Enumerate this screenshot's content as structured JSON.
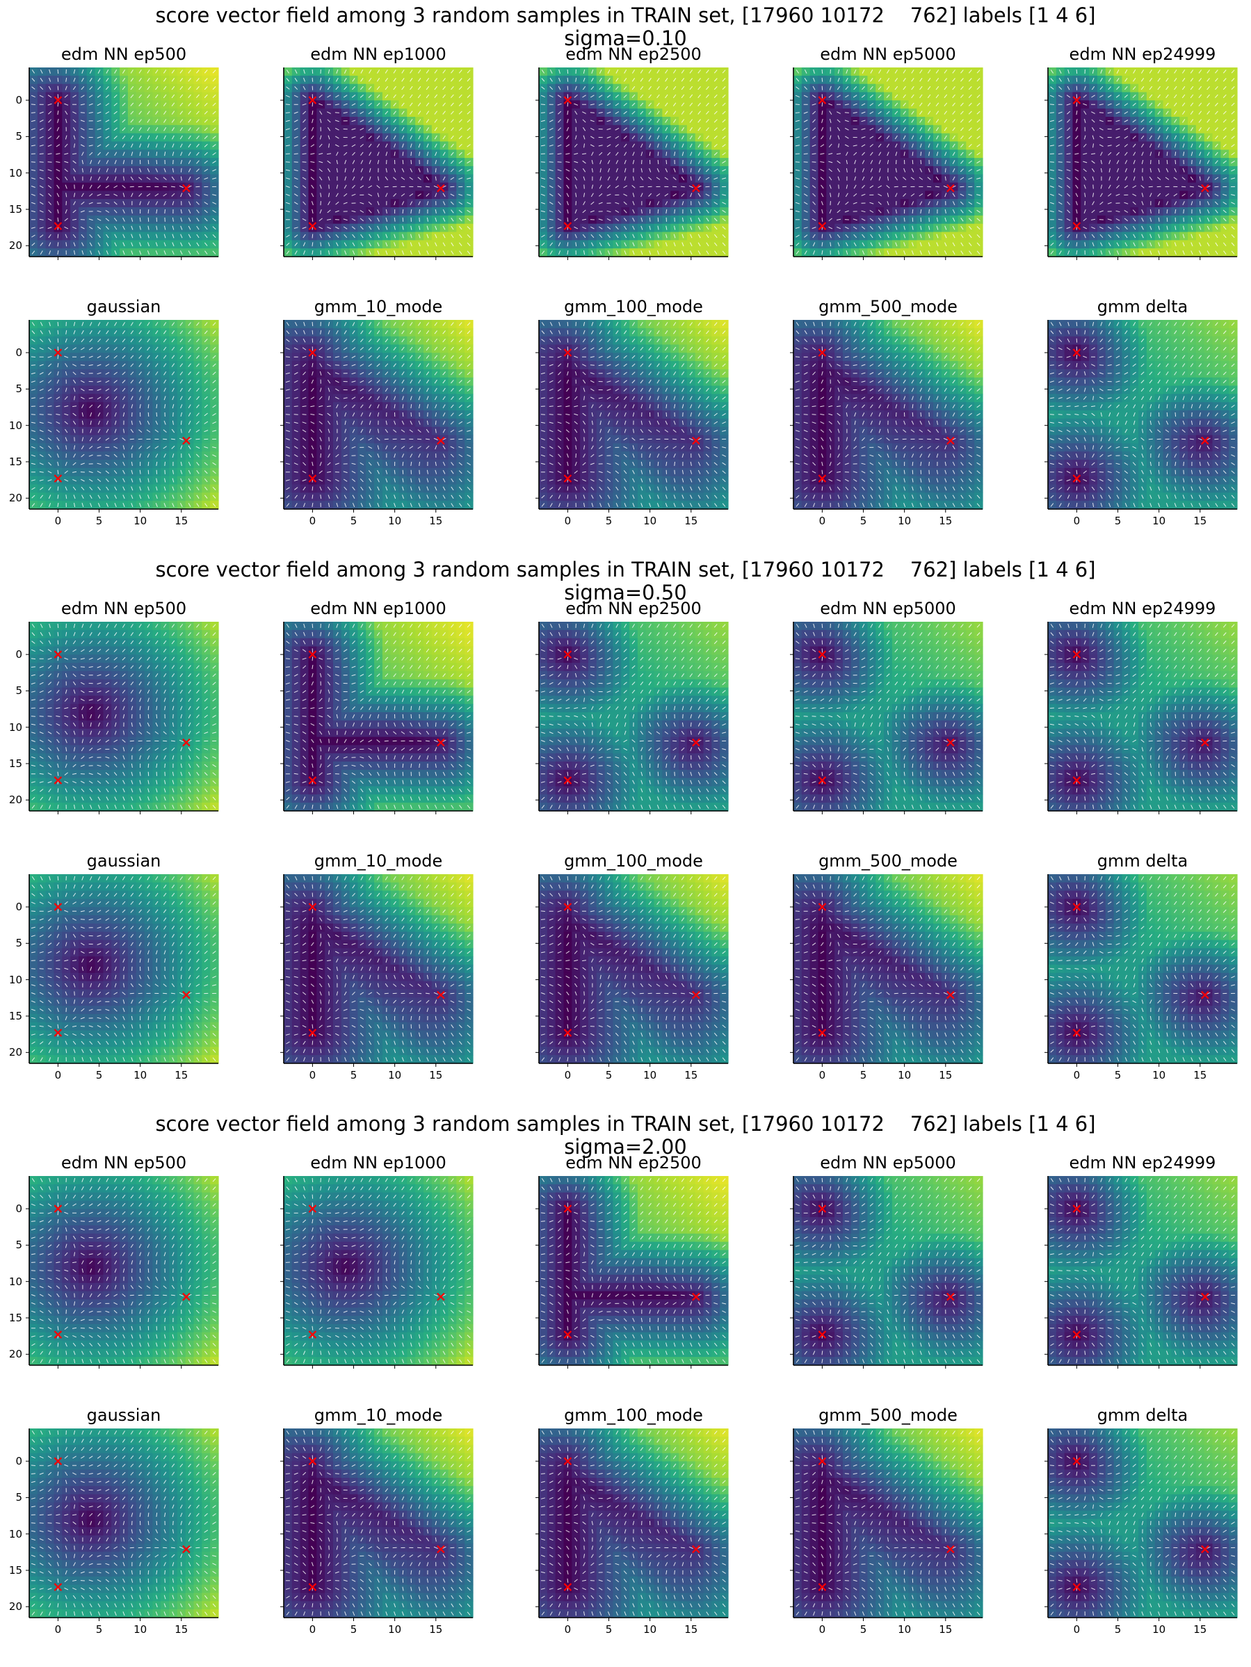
{
  "colors": {
    "viridis_stops": [
      "#440154",
      "#472c7a",
      "#3b518b",
      "#2c718e",
      "#21908d",
      "#27ad81",
      "#5cc863",
      "#aadc32",
      "#fde725"
    ],
    "marker": "#ff0000",
    "arrow": "#ffffff",
    "axis": "#000000"
  },
  "chart_data": [
    {
      "type": "heatmap",
      "title": "score vector field among 3 random samples in TRAIN set, [17960 10172    762] labels [1 4 6]",
      "subtitle": "sigma=0.10",
      "sigma": 0.1,
      "marker_points": [
        [
          0,
          0
        ],
        [
          0,
          17.3
        ],
        [
          15.6,
          12.1
        ]
      ],
      "marker_symbol": "x",
      "xlim": [
        -3.5,
        19.5
      ],
      "ylim": [
        21.5,
        -4.5
      ],
      "xticks": [
        "0",
        "5",
        "10",
        "15"
      ],
      "yticks": [
        "0",
        "5",
        "10",
        "15",
        "20"
      ],
      "panels": [
        {
          "title": "edm NN ep500",
          "pattern": "ushape",
          "low_field": 0.7
        },
        {
          "title": "edm NN ep1000",
          "pattern": "triangle",
          "low_field": 0.35
        },
        {
          "title": "edm NN ep2500",
          "pattern": "triangle",
          "low_field": 0.45
        },
        {
          "title": "edm NN ep5000",
          "pattern": "triangle",
          "low_field": 0.5
        },
        {
          "title": "edm NN ep24999",
          "pattern": "triangle",
          "low_field": 0.5
        },
        {
          "title": "gaussian",
          "pattern": "gaussian",
          "low_field": 0.55
        },
        {
          "title": "gmm_10_mode",
          "pattern": "gmm",
          "low_field": 0.6
        },
        {
          "title": "gmm_100_mode",
          "pattern": "gmm",
          "low_field": 0.6
        },
        {
          "title": "gmm_500_mode",
          "pattern": "gmm",
          "low_field": 0.6
        },
        {
          "title": "gmm delta",
          "pattern": "delta",
          "low_field": 0.55
        }
      ]
    },
    {
      "type": "heatmap",
      "title": "score vector field among 3 random samples in TRAIN set, [17960 10172    762] labels [1 4 6]",
      "subtitle": "sigma=0.50",
      "sigma": 0.5,
      "marker_points": [
        [
          0,
          0
        ],
        [
          0,
          17.3
        ],
        [
          15.6,
          12.1
        ]
      ],
      "marker_symbol": "x",
      "xlim": [
        -3.5,
        19.5
      ],
      "ylim": [
        21.5,
        -4.5
      ],
      "xticks": [
        "0",
        "5",
        "10",
        "15"
      ],
      "yticks": [
        "0",
        "5",
        "10",
        "15",
        "20"
      ],
      "panels": [
        {
          "title": "edm NN ep500",
          "pattern": "gaussian",
          "low_field": 0.6
        },
        {
          "title": "edm NN ep1000",
          "pattern": "ushape",
          "low_field": 0.6
        },
        {
          "title": "edm NN ep2500",
          "pattern": "delta",
          "low_field": 0.55
        },
        {
          "title": "edm NN ep5000",
          "pattern": "delta",
          "low_field": 0.55
        },
        {
          "title": "edm NN ep24999",
          "pattern": "delta",
          "low_field": 0.55
        },
        {
          "title": "gaussian",
          "pattern": "gaussian",
          "low_field": 0.55
        },
        {
          "title": "gmm_10_mode",
          "pattern": "gmm",
          "low_field": 0.6
        },
        {
          "title": "gmm_100_mode",
          "pattern": "gmm",
          "low_field": 0.6
        },
        {
          "title": "gmm_500_mode",
          "pattern": "gmm",
          "low_field": 0.6
        },
        {
          "title": "gmm delta",
          "pattern": "delta",
          "low_field": 0.55
        }
      ]
    },
    {
      "type": "heatmap",
      "title": "score vector field among 3 random samples in TRAIN set, [17960 10172    762] labels [1 4 6]",
      "subtitle": "sigma=2.00",
      "sigma": 2.0,
      "marker_points": [
        [
          0,
          0
        ],
        [
          0,
          17.3
        ],
        [
          15.6,
          12.1
        ]
      ],
      "marker_symbol": "x",
      "xlim": [
        -3.5,
        19.5
      ],
      "ylim": [
        21.5,
        -4.5
      ],
      "xticks": [
        "0",
        "5",
        "10",
        "15"
      ],
      "yticks": [
        "0",
        "5",
        "10",
        "15",
        "20"
      ],
      "panels": [
        {
          "title": "edm NN ep500",
          "pattern": "gaussian",
          "low_field": 0.6
        },
        {
          "title": "edm NN ep1000",
          "pattern": "gaussian",
          "low_field": 0.6
        },
        {
          "title": "edm NN ep2500",
          "pattern": "ushape",
          "low_field": 0.55
        },
        {
          "title": "edm NN ep5000",
          "pattern": "delta",
          "low_field": 0.55
        },
        {
          "title": "edm NN ep24999",
          "pattern": "delta",
          "low_field": 0.55
        },
        {
          "title": "gaussian",
          "pattern": "gaussian",
          "low_field": 0.55
        },
        {
          "title": "gmm_10_mode",
          "pattern": "gmm",
          "low_field": 0.6
        },
        {
          "title": "gmm_100_mode",
          "pattern": "gmm",
          "low_field": 0.6
        },
        {
          "title": "gmm_500_mode",
          "pattern": "gmm",
          "low_field": 0.6
        },
        {
          "title": "gmm delta",
          "pattern": "delta",
          "low_field": 0.55
        }
      ]
    }
  ]
}
